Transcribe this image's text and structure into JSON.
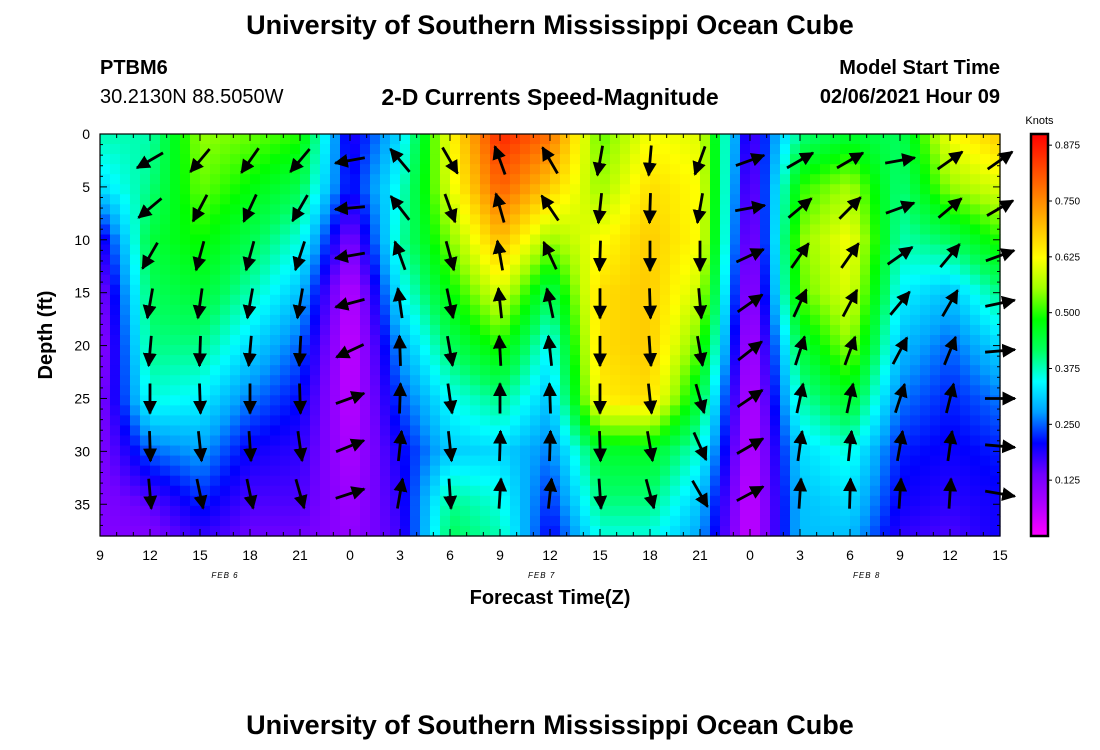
{
  "header": {
    "title": "University of Southern Mississippi Ocean Cube",
    "station_id": "PTBM6",
    "station_coords": "30.2130N 88.5050W",
    "subtitle": "2-D Currents Speed-Magnitude",
    "model_start_label": "Model Start Time",
    "model_start_value": "02/06/2021 Hour 09"
  },
  "footer": {
    "title": "University of Southern Mississippi Ocean Cube"
  },
  "chart_data": {
    "type": "heatmap",
    "title": "2-D Currents Speed-Magnitude",
    "xlabel": "Forecast Time(Z)",
    "ylabel": "Depth (ft)",
    "x_hours": [
      0,
      54
    ],
    "x_tick_values": [
      0,
      3,
      6,
      9,
      12,
      15,
      18,
      21,
      24,
      27,
      30,
      33,
      36,
      39,
      42,
      45,
      48,
      51,
      54
    ],
    "x_tick_labels": [
      "9",
      "12",
      "15",
      "18",
      "21",
      "0",
      "3",
      "6",
      "9",
      "12",
      "15",
      "18",
      "21",
      "0",
      "3",
      "6",
      "9",
      "12",
      "15"
    ],
    "date_labels": [
      {
        "at": 7.5,
        "text": "FEB 6"
      },
      {
        "at": 26.5,
        "text": "FEB 7"
      },
      {
        "at": 46,
        "text": "FEB 8"
      }
    ],
    "ylim": [
      0,
      38
    ],
    "y_tick_values": [
      0,
      5,
      10,
      15,
      20,
      25,
      30,
      35
    ],
    "y_tick_labels": [
      "0",
      "5",
      "10",
      "15",
      "20",
      "25",
      "30",
      "35"
    ],
    "y_reversed": true,
    "colorbar": {
      "unit": "Knots",
      "range": [
        0.0,
        0.9
      ],
      "tick_values": [
        0.125,
        0.25,
        0.375,
        0.5,
        0.625,
        0.75,
        0.875
      ],
      "tick_labels": [
        "0.125",
        "0.250",
        "0.375",
        "0.500",
        "0.625",
        "0.750",
        "0.875"
      ],
      "colors": [
        "#ff00ff",
        "#b000ff",
        "#7000ff",
        "#0000ff",
        "#00a0ff",
        "#00ffff",
        "#00ff60",
        "#00ff00",
        "#a0ff00",
        "#ffff00",
        "#ffc000",
        "#ff8000",
        "#ff4000",
        "#ff0000"
      ]
    },
    "speed_grid": {
      "times": [
        0,
        3,
        6,
        9,
        12,
        15,
        18,
        21,
        24,
        27,
        30,
        33,
        36,
        39,
        42,
        45,
        48,
        51,
        54
      ],
      "depths": [
        0,
        5,
        10,
        15,
        20,
        25,
        30,
        35,
        38
      ],
      "values": [
        [
          0.38,
          0.32,
          0.18,
          0.12,
          0.1,
          0.12,
          0.12,
          0.12,
          0.12
        ],
        [
          0.38,
          0.4,
          0.44,
          0.42,
          0.4,
          0.36,
          0.25,
          0.15,
          0.12
        ],
        [
          0.55,
          0.53,
          0.49,
          0.45,
          0.4,
          0.34,
          0.28,
          0.22,
          0.18
        ],
        [
          0.53,
          0.48,
          0.43,
          0.38,
          0.32,
          0.26,
          0.2,
          0.16,
          0.14
        ],
        [
          0.5,
          0.43,
          0.36,
          0.3,
          0.25,
          0.21,
          0.18,
          0.16,
          0.14
        ],
        [
          0.18,
          0.2,
          0.12,
          0.05,
          0.04,
          0.05,
          0.07,
          0.09,
          0.1
        ],
        [
          0.32,
          0.36,
          0.38,
          0.34,
          0.28,
          0.24,
          0.2,
          0.18,
          0.17
        ],
        [
          0.62,
          0.6,
          0.54,
          0.48,
          0.42,
          0.35,
          0.31,
          0.4,
          0.42
        ],
        [
          0.86,
          0.8,
          0.7,
          0.6,
          0.5,
          0.4,
          0.32,
          0.36,
          0.38
        ],
        [
          0.78,
          0.68,
          0.55,
          0.42,
          0.34,
          0.3,
          0.26,
          0.22,
          0.2
        ],
        [
          0.52,
          0.55,
          0.62,
          0.66,
          0.66,
          0.64,
          0.45,
          0.4,
          0.36
        ],
        [
          0.62,
          0.66,
          0.68,
          0.68,
          0.68,
          0.66,
          0.46,
          0.4,
          0.36
        ],
        [
          0.6,
          0.62,
          0.62,
          0.58,
          0.52,
          0.44,
          0.36,
          0.3,
          0.28
        ],
        [
          0.15,
          0.12,
          0.1,
          0.08,
          0.06,
          0.05,
          0.05,
          0.04,
          0.04
        ],
        [
          0.4,
          0.5,
          0.54,
          0.52,
          0.44,
          0.38,
          0.32,
          0.3,
          0.3
        ],
        [
          0.45,
          0.56,
          0.62,
          0.6,
          0.55,
          0.46,
          0.36,
          0.32,
          0.3
        ],
        [
          0.42,
          0.4,
          0.38,
          0.34,
          0.3,
          0.26,
          0.22,
          0.2,
          0.18
        ],
        [
          0.62,
          0.55,
          0.42,
          0.3,
          0.25,
          0.22,
          0.2,
          0.18,
          0.16
        ],
        [
          0.68,
          0.6,
          0.5,
          0.4,
          0.32,
          0.26,
          0.22,
          0.2,
          0.2
        ]
      ]
    },
    "vectors": {
      "times": [
        3,
        6,
        9,
        12,
        15,
        18,
        21,
        24,
        27,
        30,
        33,
        36,
        39,
        42,
        45,
        48,
        51,
        54
      ],
      "depths": [
        2.5,
        7,
        11.5,
        16,
        20.5,
        25,
        29.5,
        34
      ],
      "angles_deg": [
        [
          150,
          140,
          120,
          100,
          95,
          90,
          88,
          85
        ],
        [
          130,
          118,
          105,
          98,
          92,
          88,
          84,
          78
        ],
        [
          125,
          115,
          105,
          100,
          95,
          90,
          86,
          78
        ],
        [
          130,
          120,
          108,
          100,
          93,
          88,
          82,
          74
        ],
        [
          170,
          175,
          170,
          165,
          155,
          -20,
          -22,
          -18
        ],
        [
          -130,
          -128,
          -110,
          -98,
          -92,
          -88,
          -84,
          -80
        ],
        [
          60,
          70,
          75,
          78,
          80,
          82,
          84,
          86
        ],
        [
          -110,
          -106,
          -100,
          -96,
          -93,
          -90,
          -88,
          -86
        ],
        [
          -120,
          -124,
          -115,
          -102,
          -96,
          -92,
          -88,
          -84
        ],
        [
          100,
          96,
          92,
          90,
          90,
          90,
          88,
          86
        ],
        [
          95,
          92,
          90,
          88,
          86,
          84,
          80,
          75
        ],
        [
          110,
          100,
          90,
          85,
          80,
          74,
          66,
          60
        ],
        [
          -20,
          -10,
          -25,
          -35,
          -38,
          -34,
          -30,
          -28
        ],
        [
          -30,
          -40,
          -55,
          -65,
          -72,
          -78,
          -82,
          -86
        ],
        [
          -30,
          -45,
          -55,
          -62,
          -70,
          -78,
          -84,
          -88
        ],
        [
          -10,
          -20,
          -35,
          -50,
          -62,
          -72,
          -80,
          -86
        ],
        [
          -35,
          -40,
          -50,
          -60,
          -68,
          -76,
          -82,
          -86
        ],
        [
          -35,
          -30,
          -20,
          -12,
          -5,
          0,
          5,
          10
        ]
      ]
    }
  }
}
